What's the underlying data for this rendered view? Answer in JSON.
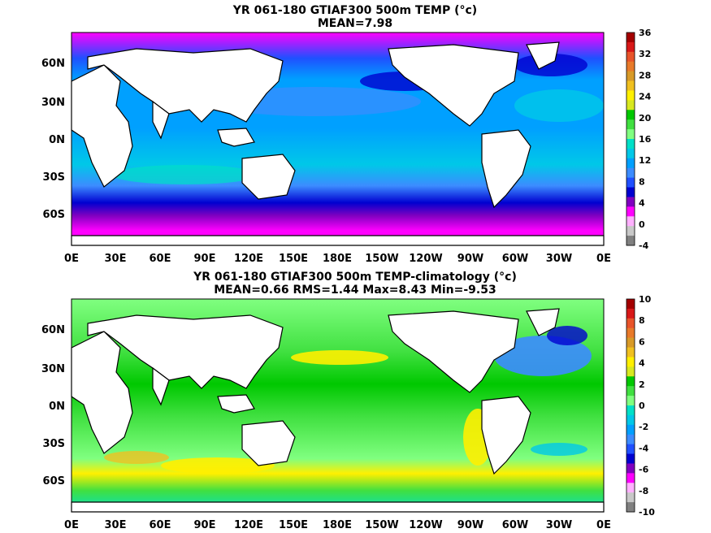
{
  "panels": [
    {
      "title_line1": "YR 061-180 GTIAF300 500m TEMP (°c)",
      "title_line2": "MEAN=7.98",
      "colorbar_labels": [
        "36",
        "32",
        "28",
        "24",
        "20",
        "16",
        "12",
        "8",
        "4",
        "0",
        "-4"
      ],
      "colorbar_colors": [
        "#a30000",
        "#d81818",
        "#e8542a",
        "#e87a2a",
        "#d89a28",
        "#f0c020",
        "#fff000",
        "#d8e820",
        "#00c800",
        "#40e040",
        "#80ff80",
        "#00e0c8",
        "#00c8e8",
        "#00a0ff",
        "#3c8cff",
        "#2050ff",
        "#0000d0",
        "#8000c0",
        "#ff00ff",
        "#ffb0ff",
        "#c8c8c8",
        "#808080"
      ]
    },
    {
      "title_line1": "YR 061-180 GTIAF300 500m TEMP-climatology (°c)",
      "title_line2": "MEAN=0.66   RMS=1.44   Max=8.43   Min=-9.53",
      "colorbar_labels": [
        "10",
        "8",
        "6",
        "4",
        "2",
        "0",
        "-2",
        "-4",
        "-6",
        "-8",
        "-10"
      ],
      "colorbar_colors": [
        "#a30000",
        "#d81818",
        "#e8542a",
        "#e87a2a",
        "#d89a28",
        "#f0c020",
        "#fff000",
        "#d8e820",
        "#00c800",
        "#40e040",
        "#80ff80",
        "#00e0c8",
        "#00c8e8",
        "#00a0ff",
        "#3c8cff",
        "#2050ff",
        "#0000d0",
        "#8000c0",
        "#ff00ff",
        "#ffb0ff",
        "#c8c8c8",
        "#808080"
      ]
    }
  ],
  "lat_labels": [
    "60N",
    "30N",
    "0N",
    "30S",
    "60S"
  ],
  "lon_labels": [
    "0E",
    "30E",
    "60E",
    "90E",
    "120E",
    "150E",
    "180E",
    "150W",
    "120W",
    "90W",
    "60W",
    "30W",
    "0E"
  ]
}
